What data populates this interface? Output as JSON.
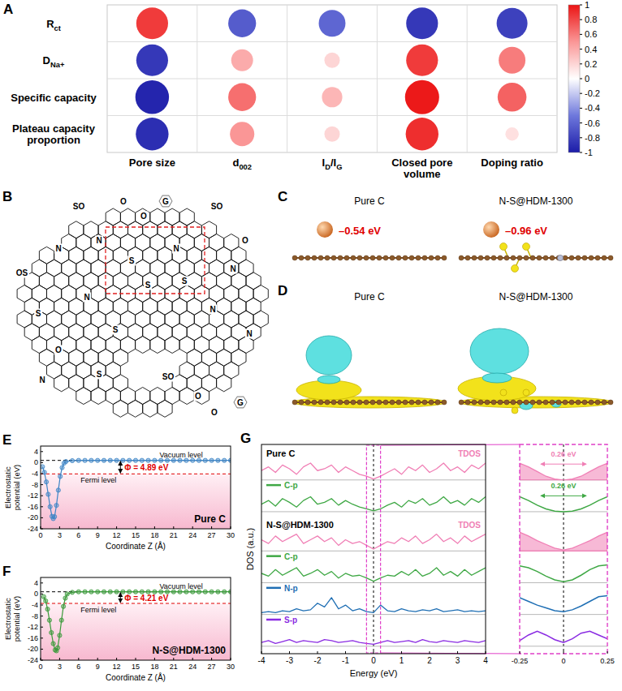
{
  "chart_data": [
    {
      "panel": "A",
      "type": "bubble_heatmap",
      "rows": [
        [
          {
            "text": "R"
          },
          {
            "text": "ct",
            "sub": true
          }
        ],
        [
          {
            "text": "D"
          },
          {
            "text": "Na+",
            "sub": true
          }
        ],
        "Specific capacity",
        "Plateau capacity proportion"
      ],
      "columns": [
        "Pore size",
        [
          {
            "text": "d"
          },
          {
            "text": "002",
            "sub": true
          }
        ],
        [
          {
            "text": "I"
          },
          {
            "text": "D",
            "sub": true
          },
          {
            "text": "/I"
          },
          {
            "text": "G",
            "sub": true
          }
        ],
        "Closed pore volume",
        "Doping ratio"
      ],
      "cells": [
        [
          0.85,
          -0.65,
          -0.6,
          -0.85,
          -0.8
        ],
        [
          -0.85,
          0.4,
          0.2,
          0.85,
          0.6
        ],
        [
          -0.95,
          0.65,
          0.35,
          0.98,
          0.7
        ],
        [
          -0.9,
          0.5,
          0.2,
          0.9,
          0.15
        ]
      ],
      "colorbar": {
        "range": [
          -1,
          1
        ],
        "ticks": [
          1,
          0.8,
          0.6,
          0.4,
          0.2,
          0,
          -0.2,
          -0.4,
          -0.6,
          -0.8,
          -1
        ]
      }
    },
    {
      "panel": "E",
      "type": "line",
      "marker": "circle",
      "color": "#3d85c6",
      "label": "Pure C",
      "xlabel": "Coordinate Z (Å)",
      "ylabel": "Electrostatic potential (eV)",
      "xlim": [
        0,
        30
      ],
      "ylim": [
        -24,
        6
      ],
      "xticks": [
        0,
        3,
        6,
        9,
        12,
        15,
        18,
        21,
        24,
        27,
        30
      ],
      "yticks": [
        4,
        0,
        -4,
        -8,
        -12,
        -16,
        -20,
        -24
      ],
      "x": [
        0.3,
        0.6,
        0.9,
        1.2,
        1.5,
        1.8,
        2.0,
        2.2,
        2.5,
        2.8,
        3.1,
        3.4,
        3.7,
        4,
        5,
        6,
        7,
        8,
        9,
        10,
        11,
        12,
        13,
        14,
        15,
        16,
        17,
        18,
        19,
        20,
        21,
        22,
        23,
        24,
        25,
        26,
        27,
        28,
        29,
        30
      ],
      "values": [
        -1.5,
        -3.5,
        -7,
        -11.5,
        -16,
        -19.5,
        -20.3,
        -19.6,
        -15.5,
        -10,
        -5,
        -1.8,
        -0.2,
        0.4,
        0.7,
        0.8,
        0.8,
        0.8,
        0.8,
        0.8,
        0.8,
        0.8,
        0.8,
        0.8,
        0.8,
        0.8,
        0.8,
        0.8,
        0.8,
        0.8,
        0.8,
        0.8,
        0.8,
        0.8,
        0.8,
        0.8,
        0.8,
        0.8,
        0.8,
        0.8
      ],
      "vacuum_level": {
        "text": "Vacuum level",
        "value": 0.8
      },
      "fermi_level": {
        "text": "Fermi level",
        "value": -4.09
      },
      "work_function": "Φ = 4.89 eV"
    },
    {
      "panel": "F",
      "type": "line",
      "marker": "circle",
      "color": "#3a9a3a",
      "label": "N-S@HDM-1300",
      "xlabel": "Coordinate Z (Å)",
      "ylabel": "Electrostatic potential (eV)",
      "xlim": [
        0,
        30
      ],
      "ylim": [
        -24,
        6
      ],
      "xticks": [
        0,
        3,
        6,
        9,
        12,
        15,
        18,
        21,
        24,
        27,
        30
      ],
      "yticks": [
        4,
        0,
        -4,
        -8,
        -12,
        -16,
        -20,
        -24
      ],
      "x": [
        0.5,
        0.8,
        1.1,
        1.4,
        1.7,
        2.0,
        2.3,
        2.5,
        2.7,
        3.0,
        3.3,
        3.6,
        3.9,
        4.2,
        5,
        6,
        7,
        8,
        9,
        10,
        11,
        12,
        13,
        14,
        15,
        16,
        17,
        18,
        19,
        20,
        21,
        22,
        23,
        24,
        25,
        26,
        27,
        28,
        29,
        30
      ],
      "values": [
        -1,
        -2.5,
        -5.5,
        -9.5,
        -14,
        -18,
        -20.3,
        -20.6,
        -19.5,
        -15,
        -9.5,
        -4.5,
        -1.5,
        0,
        0.6,
        0.8,
        0.8,
        0.8,
        0.8,
        0.8,
        0.8,
        0.8,
        0.8,
        0.8,
        0.8,
        0.8,
        0.8,
        0.8,
        0.8,
        0.8,
        0.8,
        0.8,
        0.8,
        0.8,
        0.8,
        0.8,
        0.8,
        0.8,
        0.8,
        0.8
      ],
      "vacuum_level": {
        "text": "Vacuum level",
        "value": 0.8
      },
      "fermi_level": {
        "text": "Fermi level",
        "value": -3.41
      },
      "work_function": "Φ = 4.21 eV"
    },
    {
      "panel": "G",
      "type": "dos",
      "xlabel": "Energy (eV)",
      "ylabel": "DOS (a.u.)",
      "xlim": [
        -4,
        4
      ],
      "ylim": [
        0,
        11.2
      ],
      "xticks": [
        -4,
        -3,
        -2,
        -1,
        0,
        1,
        2,
        3,
        4
      ],
      "tick_labels": "x",
      "fermi_level": 0,
      "groups": [
        "Pure C",
        "N-S@HDM-1300"
      ],
      "x": [
        -4,
        -3.75,
        -3.5,
        -3.25,
        -3,
        -2.75,
        -2.5,
        -2.25,
        -2,
        -1.75,
        -1.5,
        -1.25,
        -1,
        -0.75,
        -0.5,
        -0.25,
        0,
        0.25,
        0.5,
        0.75,
        1,
        1.25,
        1.5,
        1.75,
        2,
        2.25,
        2.5,
        2.75,
        3,
        3.25,
        3.5,
        3.75,
        4
      ],
      "series": [
        {
          "name": "TDOS",
          "group": 0,
          "color": "#f07fb5",
          "baseline": 9.3,
          "values": [
            0.5,
            0.7,
            0.4,
            0.8,
            0.6,
            0.3,
            0.7,
            0.9,
            0.5,
            0.6,
            0.8,
            0.4,
            0.7,
            0.5,
            0.3,
            0.2,
            0.05,
            0.2,
            0.4,
            0.6,
            0.3,
            0.7,
            0.5,
            0.8,
            0.4,
            0.6,
            0.9,
            0.5,
            0.7,
            0.4,
            0.8,
            0.6,
            0.9
          ]
        },
        {
          "name": "C-p",
          "group": 0,
          "color": "#3fa845",
          "baseline": 7.6,
          "values": [
            0.4,
            0.6,
            0.3,
            0.7,
            0.5,
            0.25,
            0.6,
            0.8,
            0.4,
            0.5,
            0.7,
            0.35,
            0.6,
            0.4,
            0.25,
            0.15,
            0.05,
            0.15,
            0.35,
            0.5,
            0.25,
            0.6,
            0.45,
            0.7,
            0.35,
            0.5,
            0.8,
            0.45,
            0.6,
            0.35,
            0.7,
            0.5,
            0.8
          ]
        },
        {
          "name": "TDOS",
          "group": 1,
          "color": "#f07fb5",
          "baseline": 5.5,
          "values": [
            0.6,
            0.4,
            0.8,
            0.5,
            0.7,
            0.9,
            0.4,
            0.6,
            0.8,
            0.5,
            0.7,
            0.3,
            0.6,
            0.4,
            0.5,
            0.3,
            0.1,
            0.3,
            0.5,
            0.4,
            0.7,
            0.5,
            0.8,
            0.4,
            0.6,
            0.9,
            0.5,
            0.7,
            0.4,
            0.8,
            0.5,
            0.7,
            0.9
          ]
        },
        {
          "name": "C-p",
          "group": 1,
          "color": "#3fa845",
          "baseline": 3.8,
          "values": [
            0.5,
            0.35,
            0.7,
            0.4,
            0.6,
            0.8,
            0.35,
            0.5,
            0.7,
            0.4,
            0.6,
            0.25,
            0.5,
            0.35,
            0.4,
            0.25,
            0.08,
            0.25,
            0.4,
            0.35,
            0.6,
            0.4,
            0.7,
            0.35,
            0.5,
            0.8,
            0.4,
            0.6,
            0.35,
            0.7,
            0.4,
            0.6,
            0.8
          ]
        },
        {
          "name": "N-p",
          "group": 1,
          "color": "#1f6fb4",
          "baseline": 2.1,
          "values": [
            0.1,
            0.15,
            0.1,
            0.2,
            0.15,
            0.3,
            0.2,
            0.25,
            0.6,
            0.4,
            0.9,
            0.3,
            0.5,
            0.2,
            0.3,
            0.15,
            0.1,
            0.5,
            0.2,
            0.15,
            0.3,
            0.2,
            0.15,
            0.25,
            0.2,
            0.3,
            0.15,
            0.2,
            0.25,
            0.15,
            0.2,
            0.15,
            0.2
          ]
        },
        {
          "name": "S-p",
          "group": 1,
          "color": "#8a2be2",
          "baseline": 0.4,
          "values": [
            0.2,
            0.3,
            0.15,
            0.25,
            0.35,
            0.2,
            0.3,
            0.25,
            0.2,
            0.35,
            0.3,
            0.2,
            0.25,
            0.3,
            0.2,
            0.15,
            0.1,
            0.2,
            0.3,
            0.2,
            0.25,
            0.3,
            0.2,
            0.35,
            0.25,
            0.2,
            0.3,
            0.25,
            0.2,
            0.3,
            0.25,
            0.2,
            0.3
          ]
        }
      ],
      "inset": {
        "xlim": [
          -0.25,
          0.25
        ],
        "xticks": [
          -0.25,
          0,
          0.25
        ],
        "tick_labels": "x",
        "x": [
          -0.25,
          -0.2,
          -0.15,
          -0.1,
          -0.05,
          0,
          0.05,
          0.1,
          0.15,
          0.2,
          0.25
        ],
        "series": [
          {
            "type": "area",
            "values": [
              0.9,
              0.7,
              0.45,
              0.2,
              0.05,
              0,
              0.05,
              0.2,
              0.45,
              0.7,
              0.9
            ]
          },
          {
            "type": "line",
            "values": [
              0.8,
              0.6,
              0.35,
              0.15,
              0.03,
              0,
              0.03,
              0.15,
              0.35,
              0.6,
              0.8
            ]
          },
          {
            "type": "area",
            "values": [
              1.0,
              0.8,
              0.55,
              0.35,
              0.15,
              0.05,
              0.15,
              0.35,
              0.55,
              0.8,
              1.0
            ]
          },
          {
            "type": "line",
            "values": [
              0.9,
              0.8,
              0.6,
              0.35,
              0.15,
              0.05,
              0.15,
              0.4,
              0.7,
              0.9,
              0.95
            ]
          },
          {
            "type": "line",
            "values": [
              0.9,
              0.7,
              0.5,
              0.35,
              0.2,
              0.15,
              0.25,
              0.45,
              0.7,
              0.95,
              1.0
            ]
          },
          {
            "type": "line",
            "values": [
              0.3,
              0.6,
              0.8,
              0.6,
              0.35,
              0.2,
              0.4,
              0.7,
              0.8,
              0.6,
              0.4
            ]
          }
        ],
        "gaps": [
          {
            "series": 0,
            "from": -0.13,
            "to": 0.13,
            "label": "0.26 eV"
          },
          {
            "series": 1,
            "from": -0.13,
            "to": 0.13,
            "label": "0.26 eV"
          }
        ]
      }
    }
  ],
  "diagrams": [
    {
      "panel": "B",
      "labels": [
        "SO",
        "O",
        "O",
        "G",
        "SO",
        "OS",
        "N",
        "N",
        "S",
        "N",
        "O",
        "S",
        "S",
        "N",
        "S",
        "N",
        "N",
        "S",
        "O",
        "N",
        "SO",
        "O",
        "O",
        "G",
        "S",
        "N"
      ]
    },
    {
      "panel": "C",
      "models": [
        {
          "title": "Pure C",
          "energy": "–0.54 eV"
        },
        {
          "title": "N-S@HDM-1300",
          "energy": "–0.96 eV"
        }
      ]
    },
    {
      "panel": "D",
      "models": [
        {
          "title": "Pure C"
        },
        {
          "title": "N-S@HDM-1300"
        }
      ]
    }
  ]
}
